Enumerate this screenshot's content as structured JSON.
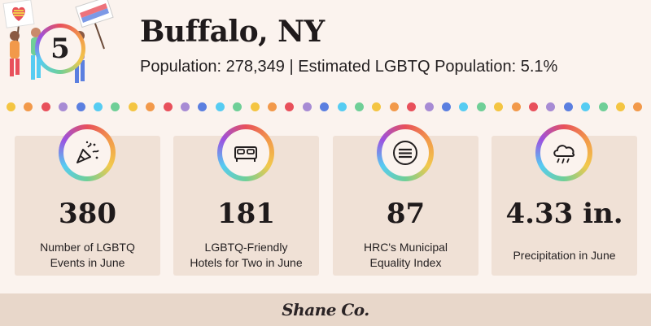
{
  "header": {
    "rank": "5",
    "city": "Buffalo, NY",
    "population_line": "Population: 278,349 | Estimated LGBTQ Population: 5.1%"
  },
  "dot_colors": [
    "#f4c542",
    "#f2994a",
    "#e8505b",
    "#a78bd4",
    "#5b7fe0",
    "#56ccf2",
    "#6fcf97"
  ],
  "stats": [
    {
      "value": "380",
      "label_line1": "Number of LGBTQ",
      "label_line2": "Events in June",
      "icon": "party-popper-icon"
    },
    {
      "value": "181",
      "label_line1": "LGBTQ-Friendly",
      "label_line2": "Hotels for Two in June",
      "icon": "bed-icon"
    },
    {
      "value": "87",
      "label_line1": "HRC's Municipal",
      "label_line2": "Equality Index",
      "icon": "equal-sign-icon"
    },
    {
      "value": "4.33 in.",
      "label_line1": "Precipitation in June",
      "label_line2": "",
      "icon": "rain-cloud-icon"
    }
  ],
  "footer": {
    "logo": "Shane Co."
  },
  "colors": {
    "background": "#fbf3ee",
    "card": "#f0e1d6",
    "footer": "#e8d7ca",
    "text": "#231f20"
  }
}
